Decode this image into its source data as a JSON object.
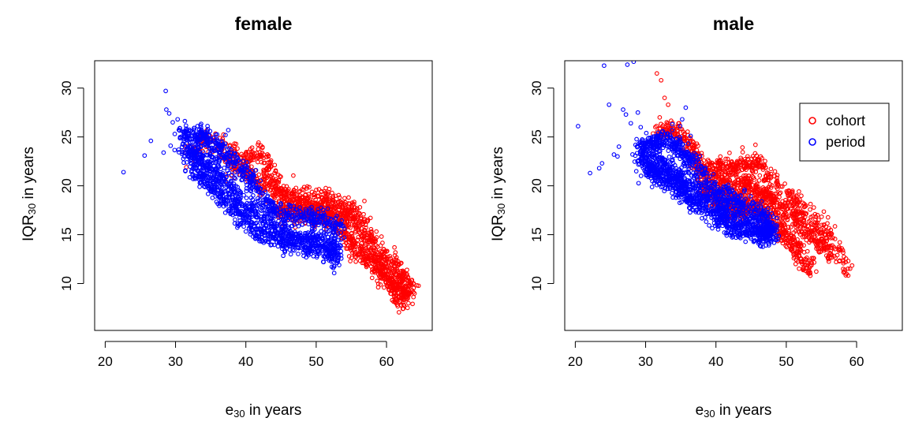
{
  "chart_data": [
    {
      "type": "scatter",
      "title": "female",
      "xlabel": {
        "base": "e",
        "sub": "30",
        "rest": " in years"
      },
      "ylabel": {
        "base": "IQR",
        "sub": "30",
        "rest": " in years"
      },
      "xlim": [
        18.5,
        66.5
      ],
      "ylim": [
        5.2,
        32.8
      ],
      "xticks": [
        20,
        30,
        40,
        50,
        60
      ],
      "yticks": [
        10,
        15,
        20,
        25,
        30
      ],
      "legend": null,
      "series": [
        {
          "name": "cohort",
          "color": "#ff0000",
          "bands": [
            [
              [
                32,
                23.2
              ],
              [
                35,
                24.8
              ],
              [
                38,
                23.8
              ],
              [
                40,
                22.5
              ],
              [
                42,
                23.4
              ],
              [
                43.5,
                21.8
              ],
              [
                45,
                19.2
              ],
              [
                48,
                18.8
              ],
              [
                51,
                19.0
              ],
              [
                54,
                17.8
              ],
              [
                56,
                17.2
              ],
              [
                58,
                14.5
              ],
              [
                60,
                12.5
              ],
              [
                62,
                11.0
              ],
              [
                64,
                9.4
              ]
            ],
            [
              [
                37,
                22.8
              ],
              [
                40,
                21.3
              ],
              [
                42.5,
                20.2
              ],
              [
                45,
                18.7
              ],
              [
                48,
                17.9
              ],
              [
                51,
                17.8
              ],
              [
                54,
                17.2
              ],
              [
                56,
                15.8
              ],
              [
                58,
                13.2
              ],
              [
                60,
                11.0
              ],
              [
                62,
                9.5
              ],
              [
                63,
                8.5
              ]
            ],
            [
              [
                44,
                17.5
              ],
              [
                47,
                17.2
              ],
              [
                50,
                17.3
              ],
              [
                52,
                16.8
              ],
              [
                54,
                15.2
              ],
              [
                56,
                13.3
              ],
              [
                58,
                12.0
              ],
              [
                60,
                10.5
              ],
              [
                62,
                8.2
              ]
            ]
          ],
          "extra_points": [
            [
              33.5,
              23.5
            ],
            [
              35.5,
              24.5
            ],
            [
              36.5,
              23.0
            ],
            [
              39.5,
              21.0
            ],
            [
              41,
              21.5
            ],
            [
              43,
              20.2
            ],
            [
              46,
              19.0
            ],
            [
              52,
              18.0
            ],
            [
              55,
              17.5
            ]
          ]
        },
        {
          "name": "period",
          "color": "#0000ff",
          "bands": [
            [
              [
                31,
                25.0
              ],
              [
                33,
                25.3
              ],
              [
                35,
                24.5
              ],
              [
                37,
                23.4
              ],
              [
                40,
                21.3
              ],
              [
                42.5,
                18.5
              ],
              [
                45,
                17.0
              ],
              [
                48,
                16.8
              ],
              [
                51,
                16.6
              ],
              [
                53.5,
                15.5
              ]
            ],
            [
              [
                31,
                23.5
              ],
              [
                33,
                23.5
              ],
              [
                35,
                22.0
              ],
              [
                37,
                20.5
              ],
              [
                40,
                18.0
              ],
              [
                42.5,
                16.5
              ],
              [
                45,
                15.2
              ],
              [
                48,
                14.8
              ],
              [
                51,
                14.3
              ],
              [
                53.5,
                13.2
              ]
            ],
            [
              [
                32,
                22.0
              ],
              [
                34,
                21.0
              ],
              [
                36.5,
                19.0
              ],
              [
                39,
                17.2
              ],
              [
                42,
                15.0
              ],
              [
                45,
                14.3
              ],
              [
                48,
                14.0
              ],
              [
                51,
                13.4
              ],
              [
                53,
                12.5
              ]
            ]
          ],
          "extra_points": [
            [
              22.6,
              21.4
            ],
            [
              25.6,
              23.1
            ],
            [
              26.5,
              24.6
            ],
            [
              28.3,
              23.4
            ],
            [
              28.6,
              29.7
            ],
            [
              28.7,
              27.8
            ],
            [
              29.1,
              27.4
            ],
            [
              29.3,
              24.1
            ],
            [
              29.6,
              26.5
            ],
            [
              29.9,
              25.3
            ],
            [
              30.3,
              26.8
            ],
            [
              30.6,
              25.9
            ],
            [
              31.2,
              25.5
            ],
            [
              31.6,
              22.4
            ],
            [
              37.5,
              25.7
            ],
            [
              37.1,
              25.2
            ],
            [
              34.6,
              25.8
            ],
            [
              31.4,
              21.5
            ],
            [
              32.5,
              20.7
            ],
            [
              35.0,
              19.5
            ],
            [
              36.0,
              19.0
            ],
            [
              47.5,
              14.8
            ],
            [
              48.0,
              14.2
            ],
            [
              46.3,
              15.4
            ]
          ]
        }
      ]
    },
    {
      "type": "scatter",
      "title": "male",
      "xlabel": {
        "base": "e",
        "sub": "30",
        "rest": " in years"
      },
      "ylabel": {
        "base": "IQR",
        "sub": "30",
        "rest": " in years"
      },
      "xlim": [
        18.5,
        66.5
      ],
      "ylim": [
        5.2,
        32.8
      ],
      "xticks": [
        20,
        30,
        40,
        50,
        60
      ],
      "yticks": [
        10,
        15,
        20,
        25,
        30
      ],
      "legend": {
        "position": "top-right",
        "entries": [
          "cohort",
          "period"
        ],
        "colors": [
          "#ff0000",
          "#0000ff"
        ]
      },
      "series": [
        {
          "name": "cohort",
          "color": "#ff0000",
          "bands": [
            [
              [
                31.5,
                25.5
              ],
              [
                34,
                25.8
              ],
              [
                36,
                24.5
              ],
              [
                38,
                22.0
              ],
              [
                40,
                21.8
              ],
              [
                42,
                21.8
              ],
              [
                44,
                22.3
              ],
              [
                46,
                22.2
              ],
              [
                48,
                20.5
              ],
              [
                51,
                18.5
              ],
              [
                54,
                16.5
              ],
              [
                57,
                14.0
              ],
              [
                59,
                11.0
              ]
            ],
            [
              [
                37,
                22.2
              ],
              [
                40,
                20.6
              ],
              [
                42,
                19.5
              ],
              [
                44,
                20.2
              ],
              [
                46,
                19.5
              ],
              [
                48,
                18.5
              ],
              [
                51,
                16.8
              ],
              [
                54,
                14.8
              ],
              [
                56.5,
                12.8
              ]
            ],
            [
              [
                38,
                20.0
              ],
              [
                41,
                18.0
              ],
              [
                43,
                17.5
              ],
              [
                45,
                18.0
              ],
              [
                48,
                16.5
              ],
              [
                51,
                14.0
              ],
              [
                53.5,
                11.5
              ]
            ]
          ],
          "extra_points": [
            [
              31.6,
              31.5
            ],
            [
              32.2,
              30.8
            ],
            [
              32.7,
              29.0
            ],
            [
              33.2,
              28.3
            ],
            [
              32.0,
              27.0
            ],
            [
              33.0,
              26.5
            ],
            [
              35.5,
              24.8
            ],
            [
              36.8,
              23.9
            ],
            [
              39.0,
              22.5
            ],
            [
              43.0,
              19.0
            ],
            [
              50.0,
              18.0
            ],
            [
              52.5,
              16.0
            ],
            [
              55.0,
              14.5
            ]
          ]
        },
        {
          "name": "period",
          "color": "#0000ff",
          "bands": [
            [
              [
                29,
                24.0
              ],
              [
                31,
                24.0
              ],
              [
                33,
                25.0
              ],
              [
                35,
                23.5
              ],
              [
                37,
                22.0
              ],
              [
                40,
                19.5
              ],
              [
                42,
                18.5
              ],
              [
                44.5,
                18.0
              ],
              [
                47,
                16.5
              ],
              [
                48,
                15.5
              ]
            ],
            [
              [
                29,
                22.8
              ],
              [
                31,
                22.5
              ],
              [
                33,
                22.0
              ],
              [
                35,
                20.8
              ],
              [
                37,
                19.8
              ],
              [
                40,
                18.0
              ],
              [
                42,
                17.0
              ],
              [
                44.5,
                16.2
              ],
              [
                47,
                15.5
              ],
              [
                48,
                14.8
              ]
            ],
            [
              [
                30,
                21.8
              ],
              [
                32,
                21.0
              ],
              [
                34,
                20.0
              ],
              [
                36.5,
                18.7
              ],
              [
                39,
                17.5
              ],
              [
                41.5,
                16.0
              ],
              [
                44,
                15.4
              ],
              [
                47,
                14.8
              ]
            ]
          ],
          "extra_points": [
            [
              20.4,
              26.1
            ],
            [
              22.1,
              21.3
            ],
            [
              23.4,
              21.8
            ],
            [
              23.8,
              22.3
            ],
            [
              24.1,
              32.3
            ],
            [
              24.8,
              28.3
            ],
            [
              26.2,
              24.0
            ],
            [
              26.8,
              27.8
            ],
            [
              27.2,
              27.3
            ],
            [
              27.4,
              32.4
            ],
            [
              27.9,
              26.4
            ],
            [
              28.3,
              32.7
            ],
            [
              28.7,
              33.0
            ],
            [
              28.9,
              27.5
            ],
            [
              29.3,
              26.0
            ],
            [
              30.1,
              25.4
            ],
            [
              30.5,
              21.5
            ],
            [
              31.0,
              21.8
            ],
            [
              33.8,
              26.3
            ],
            [
              35.2,
              26.8
            ],
            [
              35.7,
              28.0
            ],
            [
              36.4,
              25.1
            ],
            [
              34.9,
              26.1
            ],
            [
              25.5,
              23.2
            ],
            [
              26.0,
              23.0
            ]
          ]
        }
      ]
    }
  ]
}
